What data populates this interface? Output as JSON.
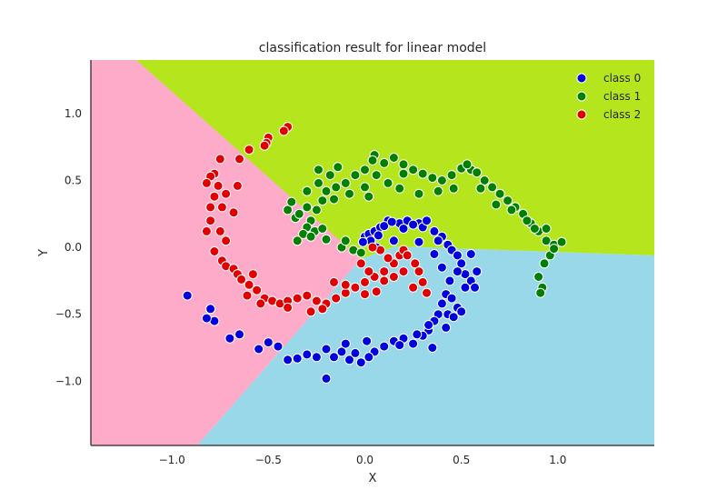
{
  "chart_data": {
    "type": "scatter",
    "title": "classification result for linear model",
    "xlabel": "X",
    "ylabel": "Y",
    "xlim": [
      -1.42,
      1.5
    ],
    "ylim": [
      -1.48,
      1.4
    ],
    "xticks": [
      -1.0,
      -0.5,
      0.0,
      0.5,
      1.0
    ],
    "xtick_labels": [
      "−1.0",
      "−0.5",
      "0.0",
      "0.5",
      "1.0"
    ],
    "yticks": [
      1.0,
      0.5,
      0.0,
      -0.5,
      -1.0
    ],
    "ytick_labels": [
      "1.0",
      "0.5",
      "0.0",
      "−0.5",
      "−1.0"
    ],
    "grid": false,
    "legend_position": "top-right",
    "decision_regions": [
      {
        "class": "class 0",
        "color": "#98d8e8"
      },
      {
        "class": "class 1",
        "color": "#b5e61d"
      },
      {
        "class": "class 2",
        "color": "#fdabc8"
      }
    ],
    "series": [
      {
        "name": "class 0",
        "color": "#0000dd",
        "points": [
          [
            0.0,
            0.08
          ],
          [
            0.02,
            0.1
          ],
          [
            0.05,
            0.12
          ],
          [
            0.08,
            0.15
          ],
          [
            0.12,
            0.2
          ],
          [
            0.18,
            0.18
          ],
          [
            0.22,
            0.2
          ],
          [
            0.28,
            0.18
          ],
          [
            0.3,
            0.15
          ],
          [
            0.36,
            0.12
          ],
          [
            0.4,
            0.08
          ],
          [
            0.43,
            0.02
          ],
          [
            0.03,
            0.05
          ],
          [
            0.07,
            0.09
          ],
          [
            0.1,
            0.16
          ],
          [
            0.14,
            0.19
          ],
          [
            0.2,
            0.14
          ],
          [
            0.25,
            0.17
          ],
          [
            0.32,
            0.2
          ],
          [
            0.38,
            0.05
          ],
          [
            0.45,
            -0.02
          ],
          [
            0.48,
            -0.06
          ],
          [
            0.5,
            -0.12
          ],
          [
            0.52,
            -0.2
          ],
          [
            0.55,
            -0.25
          ],
          [
            0.57,
            -0.3
          ],
          [
            0.58,
            -0.18
          ],
          [
            0.48,
            -0.18
          ],
          [
            0.42,
            -0.35
          ],
          [
            0.4,
            -0.42
          ],
          [
            0.38,
            -0.5
          ],
          [
            0.36,
            -0.55
          ],
          [
            0.33,
            -0.62
          ],
          [
            0.3,
            -0.66
          ],
          [
            0.25,
            -0.72
          ],
          [
            0.2,
            -0.68
          ],
          [
            0.15,
            -0.7
          ],
          [
            0.1,
            -0.74
          ],
          [
            0.05,
            -0.78
          ],
          [
            0.02,
            -0.82
          ],
          [
            -0.02,
            -0.86
          ],
          [
            -0.08,
            -0.84
          ],
          [
            -0.12,
            -0.78
          ],
          [
            -0.16,
            -0.82
          ],
          [
            -0.2,
            -0.76
          ],
          [
            -0.25,
            -0.82
          ],
          [
            -0.3,
            -0.8
          ],
          [
            -0.35,
            -0.83
          ],
          [
            -0.4,
            -0.84
          ],
          [
            -0.45,
            -0.74
          ],
          [
            -0.5,
            -0.71
          ],
          [
            -0.55,
            -0.76
          ],
          [
            -0.65,
            -0.65
          ],
          [
            -0.7,
            -0.68
          ],
          [
            -0.78,
            -0.55
          ],
          [
            -0.82,
            -0.53
          ],
          [
            -0.8,
            -0.46
          ],
          [
            -0.92,
            -0.36
          ],
          [
            -0.2,
            -0.98
          ],
          [
            0.35,
            -0.75
          ],
          [
            0.42,
            -0.6
          ],
          [
            0.45,
            -0.38
          ],
          [
            0.52,
            -0.3
          ],
          [
            0.48,
            -0.45
          ],
          [
            0.43,
            -0.5
          ],
          [
            0.55,
            -0.05
          ],
          [
            0.4,
            -0.15
          ],
          [
            0.36,
            -0.05
          ],
          [
            0.28,
            0.04
          ],
          [
            0.15,
            0.05
          ],
          [
            -0.01,
            0.04
          ],
          [
            0.06,
            0.0
          ],
          [
            0.44,
            -0.25
          ],
          [
            0.5,
            -0.48
          ],
          [
            0.46,
            -0.52
          ],
          [
            0.33,
            -0.58
          ],
          [
            0.27,
            -0.65
          ],
          [
            0.18,
            -0.73
          ],
          [
            -0.05,
            -0.79
          ],
          [
            0.01,
            -0.7
          ],
          [
            -0.1,
            -0.72
          ]
        ]
      },
      {
        "name": "class 1",
        "color": "#008000",
        "points": [
          [
            0.05,
            0.69
          ],
          [
            0.1,
            0.63
          ],
          [
            0.15,
            0.67
          ],
          [
            0.2,
            0.62
          ],
          [
            0.25,
            0.58
          ],
          [
            0.3,
            0.55
          ],
          [
            0.35,
            0.52
          ],
          [
            0.4,
            0.5
          ],
          [
            0.45,
            0.54
          ],
          [
            0.5,
            0.59
          ],
          [
            0.55,
            0.58
          ],
          [
            0.58,
            0.56
          ],
          [
            0.62,
            0.5
          ],
          [
            0.66,
            0.45
          ],
          [
            0.7,
            0.4
          ],
          [
            0.74,
            0.35
          ],
          [
            0.78,
            0.3
          ],
          [
            0.82,
            0.25
          ],
          [
            0.86,
            0.18
          ],
          [
            0.9,
            0.12
          ],
          [
            0.94,
            0.05
          ],
          [
            0.98,
            0.02
          ],
          [
            1.02,
            0.04
          ],
          [
            0.96,
            -0.06
          ],
          [
            0.93,
            -0.12
          ],
          [
            0.9,
            -0.22
          ],
          [
            0.92,
            -0.3
          ],
          [
            0.91,
            -0.34
          ],
          [
            0.0,
            0.58
          ],
          [
            0.04,
            0.65
          ],
          [
            -0.05,
            0.54
          ],
          [
            -0.1,
            0.48
          ],
          [
            -0.15,
            0.45
          ],
          [
            -0.2,
            0.42
          ],
          [
            -0.22,
            0.35
          ],
          [
            -0.25,
            0.28
          ],
          [
            -0.28,
            0.2
          ],
          [
            -0.3,
            0.15
          ],
          [
            -0.32,
            0.1
          ],
          [
            -0.35,
            0.05
          ],
          [
            -0.26,
            0.12
          ],
          [
            -0.2,
            0.06
          ],
          [
            -0.12,
            0.0
          ],
          [
            -0.06,
            -0.02
          ],
          [
            -0.02,
            -0.04
          ],
          [
            -0.3,
            0.3
          ],
          [
            -0.36,
            0.22
          ],
          [
            -0.4,
            0.28
          ],
          [
            -0.38,
            0.34
          ],
          [
            -0.14,
            0.6
          ],
          [
            -0.18,
            0.54
          ],
          [
            -0.24,
            0.48
          ],
          [
            -0.3,
            0.42
          ],
          [
            0.06,
            0.54
          ],
          [
            0.12,
            0.48
          ],
          [
            0.18,
            0.44
          ],
          [
            0.28,
            0.4
          ],
          [
            0.38,
            0.42
          ],
          [
            0.46,
            0.44
          ],
          [
            0.53,
            0.62
          ],
          [
            0.6,
            0.44
          ],
          [
            0.68,
            0.32
          ],
          [
            0.76,
            0.28
          ],
          [
            0.84,
            0.2
          ],
          [
            0.88,
            0.14
          ],
          [
            -0.24,
            0.58
          ],
          [
            0.2,
            0.55
          ],
          [
            -0.08,
            0.4
          ],
          [
            -0.16,
            0.36
          ],
          [
            -0.34,
            0.25
          ],
          [
            0.0,
            0.45
          ],
          [
            0.02,
            0.38
          ],
          [
            -0.28,
            0.08
          ],
          [
            -0.22,
            0.14
          ],
          [
            -0.1,
            0.05
          ],
          [
            0.94,
            0.14
          ],
          [
            0.98,
            -0.01
          ]
        ]
      },
      {
        "name": "class 2",
        "color": "#e00000",
        "points": [
          [
            -0.4,
            0.9
          ],
          [
            -0.42,
            0.87
          ],
          [
            -0.5,
            0.82
          ],
          [
            -0.51,
            0.78
          ],
          [
            -0.52,
            0.76
          ],
          [
            -0.6,
            0.73
          ],
          [
            -0.65,
            0.66
          ],
          [
            -0.75,
            0.66
          ],
          [
            -0.78,
            0.55
          ],
          [
            -0.8,
            0.53
          ],
          [
            -0.82,
            0.48
          ],
          [
            -0.76,
            0.46
          ],
          [
            -0.72,
            0.4
          ],
          [
            -0.78,
            0.38
          ],
          [
            -0.74,
            0.3
          ],
          [
            -0.68,
            0.26
          ],
          [
            -0.8,
            0.2
          ],
          [
            -0.75,
            0.12
          ],
          [
            -0.72,
            0.05
          ],
          [
            -0.78,
            -0.03
          ],
          [
            -0.74,
            -0.1
          ],
          [
            -0.72,
            -0.14
          ],
          [
            -0.68,
            -0.16
          ],
          [
            -0.66,
            -0.2
          ],
          [
            -0.6,
            -0.28
          ],
          [
            -0.56,
            -0.32
          ],
          [
            -0.52,
            -0.38
          ],
          [
            -0.48,
            -0.4
          ],
          [
            -0.44,
            -0.42
          ],
          [
            -0.4,
            -0.4
          ],
          [
            -0.35,
            -0.38
          ],
          [
            -0.3,
            -0.36
          ],
          [
            -0.25,
            -0.4
          ],
          [
            -0.2,
            -0.42
          ],
          [
            -0.15,
            -0.38
          ],
          [
            -0.1,
            -0.34
          ],
          [
            -0.05,
            -0.3
          ],
          [
            0.0,
            -0.26
          ],
          [
            0.05,
            -0.22
          ],
          [
            0.1,
            -0.18
          ],
          [
            0.15,
            -0.12
          ],
          [
            0.18,
            -0.06
          ],
          [
            0.2,
            -0.02
          ],
          [
            0.22,
            -0.06
          ],
          [
            0.26,
            -0.12
          ],
          [
            0.28,
            -0.18
          ],
          [
            0.3,
            -0.26
          ],
          [
            0.32,
            -0.34
          ],
          [
            0.06,
            -0.33
          ],
          [
            0.0,
            -0.35
          ],
          [
            -0.1,
            -0.28
          ],
          [
            -0.16,
            -0.26
          ],
          [
            -0.28,
            -0.48
          ],
          [
            -0.22,
            -0.46
          ],
          [
            -0.4,
            -0.45
          ],
          [
            -0.54,
            -0.42
          ],
          [
            -0.61,
            -0.36
          ],
          [
            -0.64,
            -0.24
          ],
          [
            -0.58,
            -0.2
          ],
          [
            -0.8,
            0.3
          ],
          [
            -0.82,
            0.12
          ],
          [
            -0.66,
            0.46
          ],
          [
            0.1,
            -0.25
          ],
          [
            0.15,
            -0.22
          ],
          [
            0.2,
            -0.18
          ],
          [
            0.25,
            -0.3
          ],
          [
            0.12,
            -0.08
          ],
          [
            0.08,
            -0.02
          ],
          [
            0.04,
            0.0
          ],
          [
            -0.02,
            -0.12
          ],
          [
            0.02,
            -0.18
          ]
        ]
      }
    ]
  }
}
